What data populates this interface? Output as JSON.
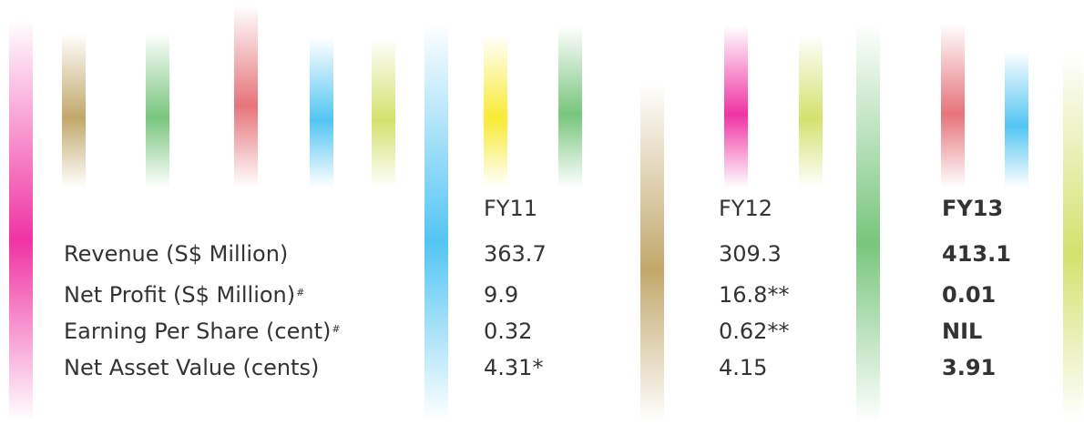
{
  "stripes": [
    {
      "name": "stripe-pink-left",
      "color": "#ec008c"
    },
    {
      "name": "stripe-gold-1",
      "color": "#b39246"
    },
    {
      "name": "stripe-green-1",
      "color": "#57b75d"
    },
    {
      "name": "stripe-red-1",
      "color": "#e0525a"
    },
    {
      "name": "stripe-blue-1",
      "color": "#29b6f0"
    },
    {
      "name": "stripe-lime-1",
      "color": "#c8da4a"
    },
    {
      "name": "stripe-blue-2",
      "color": "#29b6f0"
    },
    {
      "name": "stripe-yellow-1",
      "color": "#f6e600"
    },
    {
      "name": "stripe-green-2",
      "color": "#57b75d"
    },
    {
      "name": "stripe-gold-2",
      "color": "#b39246"
    },
    {
      "name": "stripe-pink-2",
      "color": "#ec008c"
    },
    {
      "name": "stripe-lime-2",
      "color": "#c8da4a"
    },
    {
      "name": "stripe-green-3",
      "color": "#57b75d"
    },
    {
      "name": "stripe-red-2",
      "color": "#e0525a"
    },
    {
      "name": "stripe-blue-3",
      "color": "#29b6f0"
    },
    {
      "name": "stripe-lime-3",
      "color": "#c8da4a"
    }
  ],
  "table": {
    "headers": {
      "fy11": "FY11",
      "fy12": "FY12",
      "fy13": "FY13"
    },
    "rows": [
      {
        "label": "Revenue (S$ Million)",
        "mark": "",
        "fy11": "363.7",
        "fy12": "309.3",
        "fy13": "413.1"
      },
      {
        "label": "Net Profit (S$ Million)",
        "mark": "#",
        "fy11": "9.9",
        "fy12": "16.8**",
        "fy13": "0.01"
      },
      {
        "label": "Earning Per Share (cent)",
        "mark": "#",
        "fy11": "0.32",
        "fy12": "0.62**",
        "fy13": "NIL"
      },
      {
        "label": "Net Asset Value (cents)",
        "mark": "",
        "fy11": "4.31*",
        "fy12": "4.15",
        "fy13": "3.91"
      }
    ]
  }
}
